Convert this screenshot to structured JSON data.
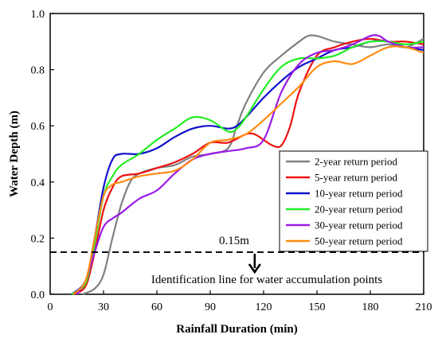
{
  "chart_data": {
    "type": "line",
    "xlabel": "Rainfall Duration (min)",
    "ylabel": "Water Depth (m)",
    "xlim": [
      0,
      210
    ],
    "ylim": [
      0.0,
      1.0
    ],
    "xticks": [
      0,
      30,
      60,
      90,
      120,
      150,
      180,
      210
    ],
    "yticks": [
      0.0,
      0.2,
      0.4,
      0.6,
      0.8,
      1.0
    ],
    "xtick_labels": [
      "0",
      "30",
      "60",
      "90",
      "120",
      "150",
      "180",
      "210"
    ],
    "ytick_labels": [
      "0.0",
      "0.2",
      "0.4",
      "0.6",
      "0.8",
      "1.0"
    ],
    "grid": false,
    "legend_position": "center-right",
    "series": [
      {
        "name": "2-year return period",
        "color": "#808080",
        "x": [
          18,
          25,
          30,
          35,
          40,
          45,
          50,
          60,
          70,
          80,
          90,
          100,
          105,
          110,
          120,
          130,
          140,
          145,
          150,
          160,
          170,
          180,
          190,
          200,
          210
        ],
        "y": [
          0.0,
          0.02,
          0.07,
          0.2,
          0.32,
          0.4,
          0.43,
          0.45,
          0.46,
          0.49,
          0.5,
          0.52,
          0.6,
          0.68,
          0.79,
          0.85,
          0.9,
          0.92,
          0.92,
          0.9,
          0.89,
          0.88,
          0.89,
          0.88,
          0.91
        ]
      },
      {
        "name": "5-year return period",
        "color": "#ee1111",
        "x": [
          13,
          20,
          25,
          30,
          35,
          40,
          50,
          60,
          70,
          80,
          90,
          100,
          110,
          115,
          120,
          125,
          130,
          135,
          140,
          150,
          160,
          170,
          180,
          190,
          200,
          210
        ],
        "y": [
          0.0,
          0.03,
          0.15,
          0.3,
          0.38,
          0.42,
          0.43,
          0.45,
          0.47,
          0.5,
          0.54,
          0.54,
          0.57,
          0.57,
          0.55,
          0.53,
          0.53,
          0.6,
          0.72,
          0.85,
          0.88,
          0.9,
          0.91,
          0.9,
          0.9,
          0.89
        ]
      },
      {
        "name": "10-year return period",
        "color": "#1111cc",
        "x": [
          12,
          20,
          25,
          30,
          35,
          40,
          50,
          60,
          70,
          80,
          90,
          100,
          105,
          110,
          120,
          130,
          140,
          150,
          160,
          170,
          180,
          190,
          200,
          210
        ],
        "y": [
          0.0,
          0.05,
          0.2,
          0.38,
          0.48,
          0.5,
          0.5,
          0.52,
          0.56,
          0.59,
          0.6,
          0.59,
          0.6,
          0.63,
          0.7,
          0.76,
          0.81,
          0.84,
          0.87,
          0.88,
          0.9,
          0.9,
          0.88,
          0.87
        ]
      },
      {
        "name": "20-year return period",
        "color": "#22ee22",
        "x": [
          12,
          20,
          25,
          30,
          35,
          40,
          50,
          60,
          70,
          80,
          90,
          100,
          105,
          110,
          120,
          130,
          140,
          150,
          160,
          170,
          180,
          190,
          200,
          210
        ],
        "y": [
          0.0,
          0.04,
          0.18,
          0.35,
          0.42,
          0.46,
          0.5,
          0.55,
          0.59,
          0.63,
          0.62,
          0.58,
          0.59,
          0.63,
          0.73,
          0.81,
          0.84,
          0.84,
          0.85,
          0.88,
          0.9,
          0.9,
          0.89,
          0.9
        ]
      },
      {
        "name": "30-year return period",
        "color": "#9a1ae6",
        "x": [
          15,
          20,
          25,
          30,
          35,
          40,
          50,
          60,
          70,
          80,
          90,
          100,
          110,
          120,
          130,
          140,
          150,
          160,
          170,
          180,
          185,
          190,
          200,
          210
        ],
        "y": [
          0.0,
          0.05,
          0.15,
          0.24,
          0.27,
          0.29,
          0.34,
          0.37,
          0.43,
          0.48,
          0.5,
          0.51,
          0.52,
          0.55,
          0.72,
          0.82,
          0.86,
          0.87,
          0.89,
          0.92,
          0.92,
          0.9,
          0.88,
          0.88
        ]
      },
      {
        "name": "50-year return period",
        "color": "#ff8c11",
        "x": [
          13,
          20,
          25,
          30,
          35,
          40,
          50,
          60,
          70,
          80,
          90,
          100,
          110,
          120,
          130,
          140,
          150,
          160,
          170,
          180,
          190,
          200,
          210
        ],
        "y": [
          0.0,
          0.05,
          0.2,
          0.35,
          0.39,
          0.4,
          0.42,
          0.43,
          0.44,
          0.48,
          0.54,
          0.55,
          0.57,
          0.62,
          0.68,
          0.74,
          0.81,
          0.83,
          0.82,
          0.85,
          0.88,
          0.88,
          0.86
        ]
      }
    ],
    "reference_line": {
      "y": 0.15,
      "label": "0.15m",
      "style": "dashed",
      "color": "#000000"
    },
    "annotation": {
      "text": "Identification line for water accumulation points",
      "arrow": "down",
      "x": 115
    }
  }
}
